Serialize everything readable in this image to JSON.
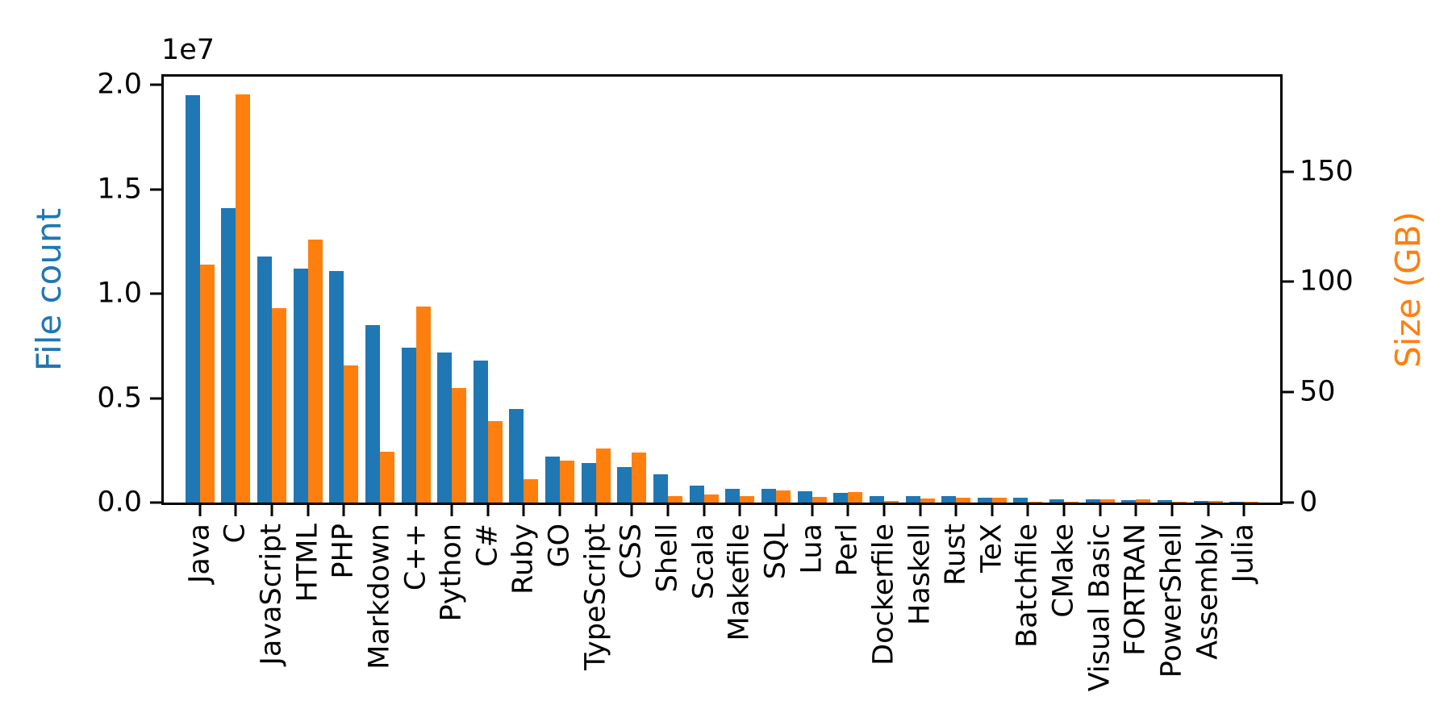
{
  "figure": {
    "background": "#ffffff",
    "left_axis": {
      "label": "File count",
      "label_color": "#1f77b4",
      "offset_text": "1e7",
      "tick_labels": [
        "0.0",
        "0.5",
        "1.0",
        "1.5",
        "2.0"
      ],
      "tick_values": [
        0,
        5000000,
        10000000,
        15000000,
        20000000
      ],
      "axis_max": 20400000
    },
    "right_axis": {
      "label": "Size (GB)",
      "label_color": "#ff7f0e",
      "tick_labels": [
        "0",
        "50",
        "100",
        "150"
      ],
      "tick_values": [
        0,
        50,
        100,
        150
      ],
      "axis_max": 193
    },
    "colors": {
      "file_count_bar": "#1f77b4",
      "size_bar": "#ff7f0e",
      "spine": "#000000",
      "text": "#000000"
    }
  },
  "chart_data": {
    "type": "bar",
    "title": "",
    "xlabel": "",
    "ylabel_left": "File count",
    "ylabel_right": "Size (GB)",
    "ylim_left": [
      0,
      20400000
    ],
    "ylim_right": [
      0,
      193
    ],
    "left_offset_multiplier": "1e7",
    "grid": false,
    "legend": "none",
    "categories": [
      "Java",
      "C",
      "JavaScript",
      "HTML",
      "PHP",
      "Markdown",
      "C++",
      "Python",
      "C#",
      "Ruby",
      "GO",
      "TypeScript",
      "CSS",
      "Shell",
      "Scala",
      "Makefile",
      "SQL",
      "Lua",
      "Perl",
      "Dockerfile",
      "Haskell",
      "Rust",
      "TeX",
      "Batchfile",
      "CMake",
      "Visual Basic",
      "FORTRAN",
      "PowerShell",
      "Assembly",
      "Julia"
    ],
    "series": [
      {
        "name": "File count",
        "axis": "left",
        "unit": "files",
        "color": "#1f77b4",
        "values": [
          19500000,
          14100000,
          11800000,
          11200000,
          11100000,
          8500000,
          7400000,
          7200000,
          6800000,
          4500000,
          2200000,
          1900000,
          1700000,
          1340000,
          800000,
          650000,
          650000,
          530000,
          460000,
          310000,
          310000,
          300000,
          230000,
          220000,
          160000,
          150000,
          120000,
          110000,
          80000,
          50000
        ]
      },
      {
        "name": "Size (GB)",
        "axis": "right",
        "unit": "GB",
        "color": "#ff7f0e",
        "values": [
          108,
          185,
          88,
          119,
          62,
          23,
          89,
          52,
          37,
          10.5,
          19,
          24.5,
          22.5,
          3,
          3.6,
          2.9,
          5.4,
          2.5,
          4.7,
          0.7,
          1.8,
          2.2,
          2.2,
          0.3,
          0.2,
          1.6,
          1.6,
          0.3,
          0.7,
          0.2
        ]
      }
    ]
  }
}
